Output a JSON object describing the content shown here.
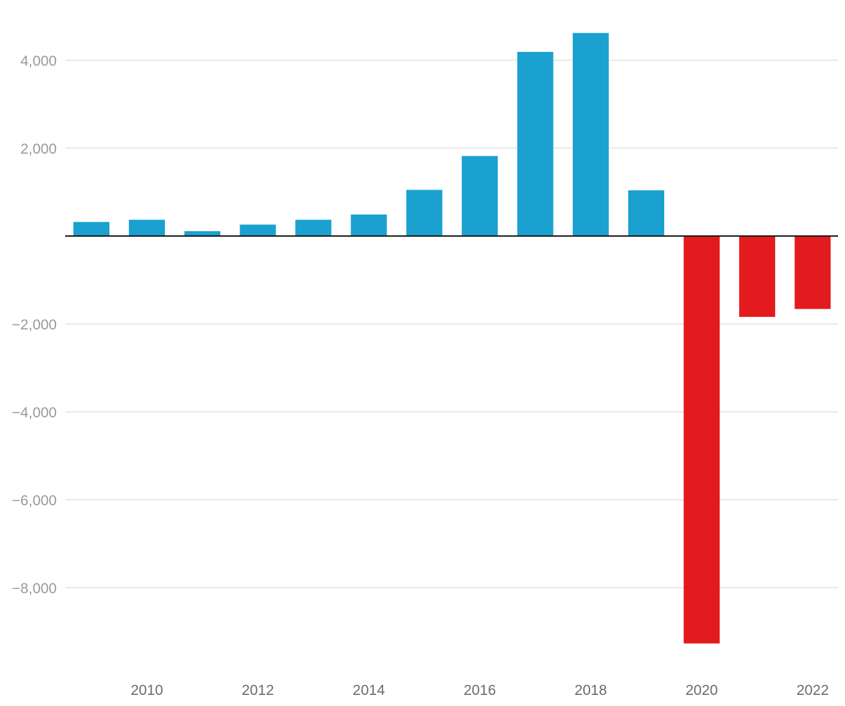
{
  "chart_data": {
    "type": "bar",
    "categories": [
      "2009",
      "2010",
      "2011",
      "2012",
      "2013",
      "2014",
      "2015",
      "2016",
      "2017",
      "2018",
      "2019",
      "2020",
      "2021",
      "2022"
    ],
    "values": [
      320,
      370,
      110,
      260,
      370,
      490,
      1050,
      1820,
      4190,
      4620,
      1040,
      -9270,
      -1840,
      -1660
    ],
    "title": "",
    "xlabel": "",
    "ylabel": "",
    "ylim": [
      -9700,
      4700
    ],
    "y_ticks": [
      4000,
      2000,
      -2000,
      -4000,
      -6000,
      -8000
    ],
    "y_tick_labels": [
      "4,000",
      "2,000",
      "−2,000",
      "−4,000",
      "−6,000",
      "−8,000"
    ],
    "x_tick_labels": [
      "2010",
      "2012",
      "2014",
      "2016",
      "2018",
      "2020",
      "2022"
    ],
    "grid": true,
    "legend": "none",
    "colors": {
      "positive": "#1aa1cf",
      "negative": "#e31b1e"
    }
  }
}
